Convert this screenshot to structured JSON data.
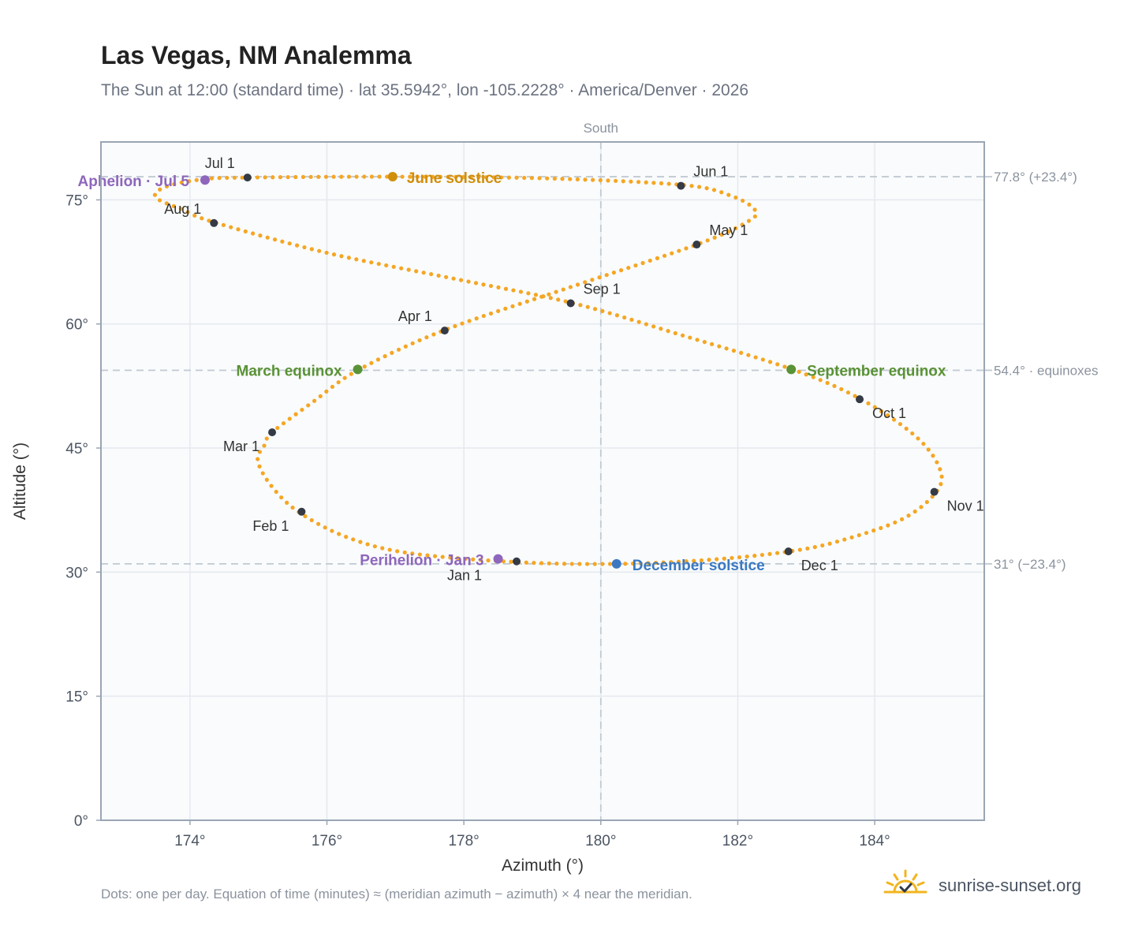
{
  "title": "Las Vegas, NM Analemma",
  "subtitle": "The Sun at 12:00 (standard time) · lat 35.5942°, lon -105.2228° · America/Denver · 2026",
  "footnote": "Dots: one per day. Equation of time (minutes) ≈ (meridian azimuth − azimuth) × 4 near the meridian.",
  "brand": {
    "name": "sunrise-sunset.org",
    "logo_icon": "sun-check-icon"
  },
  "colors": {
    "analemma": "#f5a623",
    "month_marker": "#343a46",
    "solstice_june": "#d18e0a",
    "solstice_december": "#3a78c2",
    "equinox": "#5a9236",
    "perihelion_aphelion": "#8e66bc",
    "grid": "#e5e9ee",
    "plot_background": "#f9fbfc",
    "axis": "#9aa5b4",
    "reference_line": "#c0c9d2"
  },
  "chart_data": {
    "type": "scatter",
    "xlabel": "Azimuth (°)",
    "ylabel": "Altitude (°)",
    "xlim": [
      172.7,
      185.6
    ],
    "ylim": [
      0,
      82
    ],
    "x_ticks": [
      174,
      176,
      178,
      180,
      182,
      184
    ],
    "x_tick_labels": [
      "174°",
      "176°",
      "178°",
      "180°",
      "182°",
      "184°"
    ],
    "y_ticks": [
      0,
      15,
      30,
      45,
      60,
      75
    ],
    "y_tick_labels": [
      "0°",
      "15°",
      "30°",
      "45°",
      "60°",
      "75°"
    ],
    "grid": true,
    "meridian": {
      "azimuth": 180,
      "label": "South"
    },
    "reference_lines": [
      {
        "altitude": 77.8,
        "label": "77.8° (+23.4°)"
      },
      {
        "altitude": 54.4,
        "label": "54.4° · equinoxes"
      },
      {
        "altitude": 31.0,
        "label": "31° (−23.4°)"
      }
    ],
    "analemma_path": [
      {
        "x": 178.8,
        "y": 31.2
      },
      {
        "x": 177.2,
        "y": 32.3
      },
      {
        "x": 176.3,
        "y": 34.2
      },
      {
        "x": 175.6,
        "y": 37.2
      },
      {
        "x": 175.2,
        "y": 40.3
      },
      {
        "x": 174.99,
        "y": 43.5
      },
      {
        "x": 175.1,
        "y": 45.5
      },
      {
        "x": 175.2,
        "y": 46.9
      },
      {
        "x": 175.8,
        "y": 50.6
      },
      {
        "x": 176.45,
        "y": 54.4
      },
      {
        "x": 177.7,
        "y": 59.2
      },
      {
        "x": 179.5,
        "y": 64.3
      },
      {
        "x": 181.4,
        "y": 69.6
      },
      {
        "x": 182.15,
        "y": 72.4
      },
      {
        "x": 182.25,
        "y": 73.8
      },
      {
        "x": 181.9,
        "y": 75.5
      },
      {
        "x": 181.2,
        "y": 76.8
      },
      {
        "x": 179.2,
        "y": 77.6
      },
      {
        "x": 176.95,
        "y": 77.8
      },
      {
        "x": 174.85,
        "y": 77.7
      },
      {
        "x": 174.2,
        "y": 77.5
      },
      {
        "x": 173.65,
        "y": 76.6
      },
      {
        "x": 173.5,
        "y": 75.3
      },
      {
        "x": 173.9,
        "y": 73.8
      },
      {
        "x": 174.35,
        "y": 72.3
      },
      {
        "x": 176.0,
        "y": 68.6
      },
      {
        "x": 177.9,
        "y": 65.4
      },
      {
        "x": 179.6,
        "y": 62.5
      },
      {
        "x": 181.2,
        "y": 58.6
      },
      {
        "x": 182.8,
        "y": 54.5
      },
      {
        "x": 183.8,
        "y": 50.9
      },
      {
        "x": 184.6,
        "y": 46.4
      },
      {
        "x": 184.95,
        "y": 42.5
      },
      {
        "x": 184.9,
        "y": 39.7
      },
      {
        "x": 184.4,
        "y": 36.4
      },
      {
        "x": 183.5,
        "y": 33.8
      },
      {
        "x": 182.75,
        "y": 32.5
      },
      {
        "x": 181.6,
        "y": 31.5
      },
      {
        "x": 180.25,
        "y": 31.0
      },
      {
        "x": 178.8,
        "y": 31.2
      }
    ],
    "month_markers": [
      {
        "label": "Jan 1",
        "x": 178.77,
        "y": 31.3
      },
      {
        "label": "Feb 1",
        "x": 175.63,
        "y": 37.3
      },
      {
        "label": "Mar 1",
        "x": 175.2,
        "y": 46.9
      },
      {
        "label": "Apr 1",
        "x": 177.72,
        "y": 59.2
      },
      {
        "label": "May 1",
        "x": 181.4,
        "y": 69.6
      },
      {
        "label": "Jun 1",
        "x": 181.17,
        "y": 76.7
      },
      {
        "label": "Jul 1",
        "x": 174.84,
        "y": 77.7
      },
      {
        "label": "Aug 1",
        "x": 174.35,
        "y": 72.2
      },
      {
        "label": "Sep 1",
        "x": 179.56,
        "y": 62.5
      },
      {
        "label": "Oct 1",
        "x": 183.78,
        "y": 50.9
      },
      {
        "label": "Nov 1",
        "x": 184.87,
        "y": 39.7
      },
      {
        "label": "Dec 1",
        "x": 182.74,
        "y": 32.5
      }
    ],
    "events": [
      {
        "label": "June solstice",
        "x": 176.96,
        "y": 77.8,
        "kind": "solstice_june"
      },
      {
        "label": "December solstice",
        "x": 180.23,
        "y": 31.0,
        "kind": "solstice_december"
      },
      {
        "label": "March equinox",
        "x": 176.45,
        "y": 54.5,
        "kind": "equinox"
      },
      {
        "label": "September equinox",
        "x": 182.78,
        "y": 54.5,
        "kind": "equinox"
      },
      {
        "label": "Perihelion · Jan 3",
        "x": 178.5,
        "y": 31.6,
        "kind": "perihelion_aphelion"
      },
      {
        "label": "Aphelion · Jul 5",
        "x": 174.22,
        "y": 77.4,
        "kind": "perihelion_aphelion"
      }
    ]
  }
}
